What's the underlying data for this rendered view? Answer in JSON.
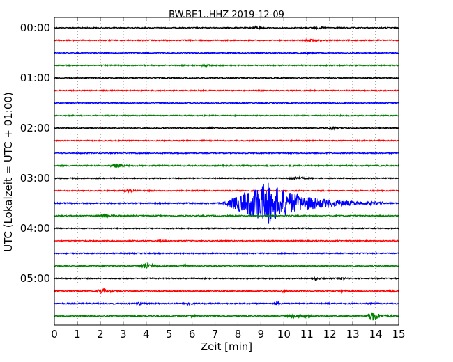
{
  "chart_data": {
    "type": "line",
    "title": "BW.BE1..HHZ 2019-12-09",
    "xlabel": "Zeit  [min]",
    "ylabel": "UTC (Lokalzeit = UTC + 01:00)",
    "xlim": [
      0,
      15
    ],
    "x_ticks": [
      0,
      1,
      2,
      3,
      4,
      5,
      6,
      7,
      8,
      9,
      10,
      11,
      12,
      13,
      14,
      15
    ],
    "x_tick_labels": [
      "0",
      "1",
      "2",
      "3",
      "4",
      "5",
      "6",
      "7",
      "8",
      "9",
      "10",
      "11",
      "12",
      "13",
      "14",
      "15"
    ],
    "y_tick_labels": [
      "00:00",
      "01:00",
      "02:00",
      "03:00",
      "04:00",
      "05:00"
    ],
    "y_tick_traces": [
      0,
      4,
      8,
      12,
      16,
      20
    ],
    "trace_interval_minutes": 15,
    "grid": {
      "x": "dotted",
      "y": "none"
    },
    "trace_colors": [
      "#000000",
      "#ff0000",
      "#0000ff",
      "#008000"
    ],
    "traces": [
      {
        "start": "00:00",
        "noise": 0.7,
        "events": [
          {
            "t": 8.8,
            "amp": 1.6,
            "dur": 0.3
          },
          {
            "t": 11.5,
            "amp": 1.3,
            "dur": 0.3
          }
        ]
      },
      {
        "start": "00:15",
        "noise": 0.7,
        "events": [
          {
            "t": 11.2,
            "amp": 1.2,
            "dur": 0.4
          }
        ]
      },
      {
        "start": "00:30",
        "noise": 0.7,
        "events": [
          {
            "t": 10.9,
            "amp": 1.2,
            "dur": 0.3
          }
        ]
      },
      {
        "start": "00:45",
        "noise": 0.7,
        "events": [
          {
            "t": 6.6,
            "amp": 1.1,
            "dur": 0.3
          }
        ]
      },
      {
        "start": "01:00",
        "noise": 0.7,
        "events": [
          {
            "t": 5.7,
            "amp": 1.1,
            "dur": 0.2
          }
        ]
      },
      {
        "start": "01:15",
        "noise": 0.7,
        "events": []
      },
      {
        "start": "01:30",
        "noise": 0.7,
        "events": []
      },
      {
        "start": "01:45",
        "noise": 0.7,
        "events": []
      },
      {
        "start": "02:00",
        "noise": 0.7,
        "events": [
          {
            "t": 6.8,
            "amp": 2.3,
            "dur": 0.15
          },
          {
            "t": 12.1,
            "amp": 2.8,
            "dur": 0.2
          }
        ]
      },
      {
        "start": "02:15",
        "noise": 0.7,
        "events": []
      },
      {
        "start": "02:30",
        "noise": 0.7,
        "events": []
      },
      {
        "start": "02:45",
        "noise": 0.8,
        "events": [
          {
            "t": 2.7,
            "amp": 2.8,
            "dur": 0.3
          }
        ]
      },
      {
        "start": "03:00",
        "noise": 0.7,
        "events": [
          {
            "t": 10.5,
            "amp": 1.6,
            "dur": 0.4
          }
        ]
      },
      {
        "start": "03:15",
        "noise": 0.7,
        "events": [
          {
            "t": 3.3,
            "amp": 1.2,
            "dur": 0.4
          }
        ]
      },
      {
        "start": "03:30",
        "noise": 0.8,
        "events": [
          {
            "t": 9.3,
            "amp": 30,
            "dur": 2.0
          }
        ]
      },
      {
        "start": "03:45",
        "noise": 0.8,
        "events": [
          {
            "t": 2.1,
            "amp": 1.6,
            "dur": 0.4
          }
        ]
      },
      {
        "start": "04:00",
        "noise": 0.7,
        "events": []
      },
      {
        "start": "04:15",
        "noise": 0.7,
        "events": [
          {
            "t": 4.7,
            "amp": 1.2,
            "dur": 0.2
          }
        ]
      },
      {
        "start": "04:30",
        "noise": 0.7,
        "events": []
      },
      {
        "start": "04:45",
        "noise": 0.8,
        "events": [
          {
            "t": 4.0,
            "amp": 4.5,
            "dur": 0.4
          },
          {
            "t": 5.7,
            "amp": 1.1,
            "dur": 0.2
          }
        ]
      },
      {
        "start": "05:00",
        "noise": 0.7,
        "events": [
          {
            "t": 11.4,
            "amp": 1.8,
            "dur": 0.2
          },
          {
            "t": 12.5,
            "amp": 1.4,
            "dur": 0.2
          }
        ]
      },
      {
        "start": "05:15",
        "noise": 0.8,
        "events": [
          {
            "t": 2.1,
            "amp": 2.5,
            "dur": 0.4
          },
          {
            "t": 10.0,
            "amp": 2.2,
            "dur": 0.15
          },
          {
            "t": 12.5,
            "amp": 1.4,
            "dur": 0.2
          },
          {
            "t": 14.7,
            "amp": 2.2,
            "dur": 0.15
          }
        ]
      },
      {
        "start": "05:30",
        "noise": 0.8,
        "events": [
          {
            "t": 3.7,
            "amp": 2.2,
            "dur": 0.15
          },
          {
            "t": 5.9,
            "amp": 2.2,
            "dur": 0.15
          },
          {
            "t": 9.7,
            "amp": 2.2,
            "dur": 0.15
          }
        ]
      },
      {
        "start": "05:45",
        "noise": 0.8,
        "events": [
          {
            "t": 6.0,
            "amp": 1.4,
            "dur": 0.2
          },
          {
            "t": 10.4,
            "amp": 2.5,
            "dur": 0.3
          },
          {
            "t": 10.8,
            "amp": 2.2,
            "dur": 0.3
          },
          {
            "t": 13.9,
            "amp": 6.0,
            "dur": 0.4
          }
        ]
      }
    ]
  }
}
